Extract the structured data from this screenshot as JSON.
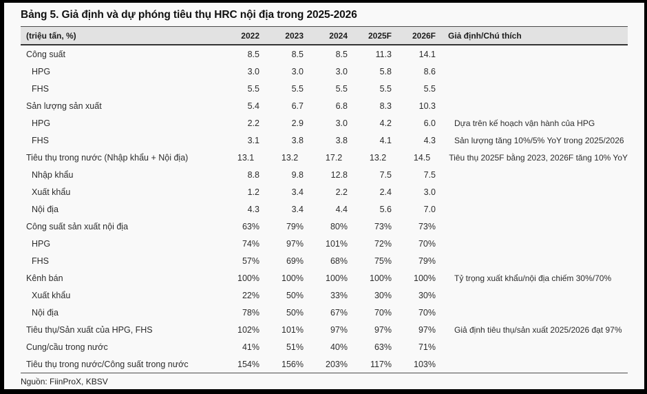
{
  "title": "Bảng 5. Giả định và dự phóng tiêu thụ HRC nội địa trong 2025-2026",
  "source": "Nguồn: FiinProX, KBSV",
  "colors": {
    "frame": "#000000",
    "page_bg": "#f9f9f9",
    "header_bg": "#e2e2e2",
    "border_dark": "#3a3a3a",
    "text": "#2c2c2c"
  },
  "table": {
    "unit_header": "(triệu tấn, %)",
    "year_headers": [
      "2022",
      "2023",
      "2024",
      "2025F",
      "2026F"
    ],
    "note_header": "Giả định/Chú thích",
    "rows": [
      {
        "label": "Công suất",
        "indent": 0,
        "values": [
          "8.5",
          "8.5",
          "8.5",
          "11.3",
          "14.1"
        ],
        "note": ""
      },
      {
        "label": "HPG",
        "indent": 1,
        "values": [
          "3.0",
          "3.0",
          "3.0",
          "5.8",
          "8.6"
        ],
        "note": ""
      },
      {
        "label": "FHS",
        "indent": 1,
        "values": [
          "5.5",
          "5.5",
          "5.5",
          "5.5",
          "5.5"
        ],
        "note": ""
      },
      {
        "label": "Sản lượng sản xuất",
        "indent": 0,
        "values": [
          "5.4",
          "6.7",
          "6.8",
          "8.3",
          "10.3"
        ],
        "note": ""
      },
      {
        "label": "HPG",
        "indent": 1,
        "values": [
          "2.2",
          "2.9",
          "3.0",
          "4.2",
          "6.0"
        ],
        "note": "Dựa trên kế hoạch vận hành của HPG"
      },
      {
        "label": "FHS",
        "indent": 1,
        "values": [
          "3.1",
          "3.8",
          "3.8",
          "4.1",
          "4.3"
        ],
        "note": "Sản lượng tăng 10%/5% YoY trong 2025/2026"
      },
      {
        "label": "Tiêu thụ trong nước (Nhập khẩu + Nội địa)",
        "indent": 0,
        "values": [
          "13.1",
          "13.2",
          "17.2",
          "13.2",
          "14.5"
        ],
        "note": "Tiêu thụ 2025F bằng 2023, 2026F tăng 10% YoY"
      },
      {
        "label": "Nhập khẩu",
        "indent": 1,
        "values": [
          "8.8",
          "9.8",
          "12.8",
          "7.5",
          "7.5"
        ],
        "note": ""
      },
      {
        "label": "Xuất khẩu",
        "indent": 1,
        "values": [
          "1.2",
          "3.4",
          "2.2",
          "2.4",
          "3.0"
        ],
        "note": ""
      },
      {
        "label": "Nội địa",
        "indent": 1,
        "values": [
          "4.3",
          "3.4",
          "4.4",
          "5.6",
          "7.0"
        ],
        "note": ""
      },
      {
        "label": "Công suất sản xuất nội địa",
        "indent": 0,
        "values": [
          "63%",
          "79%",
          "80%",
          "73%",
          "73%"
        ],
        "note": ""
      },
      {
        "label": "HPG",
        "indent": 1,
        "values": [
          "74%",
          "97%",
          "101%",
          "72%",
          "70%"
        ],
        "note": ""
      },
      {
        "label": "FHS",
        "indent": 1,
        "values": [
          "57%",
          "69%",
          "68%",
          "75%",
          "79%"
        ],
        "note": ""
      },
      {
        "label": "Kênh bán",
        "indent": 0,
        "values": [
          "100%",
          "100%",
          "100%",
          "100%",
          "100%"
        ],
        "note": "Tỷ trọng xuất khẩu/nội địa chiếm 30%/70%"
      },
      {
        "label": "Xuất khẩu",
        "indent": 1,
        "values": [
          "22%",
          "50%",
          "33%",
          "30%",
          "30%"
        ],
        "note": ""
      },
      {
        "label": "Nội địa",
        "indent": 1,
        "values": [
          "78%",
          "50%",
          "67%",
          "70%",
          "70%"
        ],
        "note": ""
      },
      {
        "label": "Tiêu thụ/Sản xuất của HPG, FHS",
        "indent": 0,
        "values": [
          "102%",
          "101%",
          "97%",
          "97%",
          "97%"
        ],
        "note": "Giả định tiêu thụ/sản xuất 2025/2026 đạt 97%"
      },
      {
        "label": "Cung/cầu trong nước",
        "indent": 0,
        "values": [
          "41%",
          "51%",
          "40%",
          "63%",
          "71%"
        ],
        "note": ""
      },
      {
        "label": "Tiêu thụ trong nước/Công suất trong nước",
        "indent": 0,
        "values": [
          "154%",
          "156%",
          "203%",
          "117%",
          "103%"
        ],
        "note": ""
      }
    ]
  }
}
